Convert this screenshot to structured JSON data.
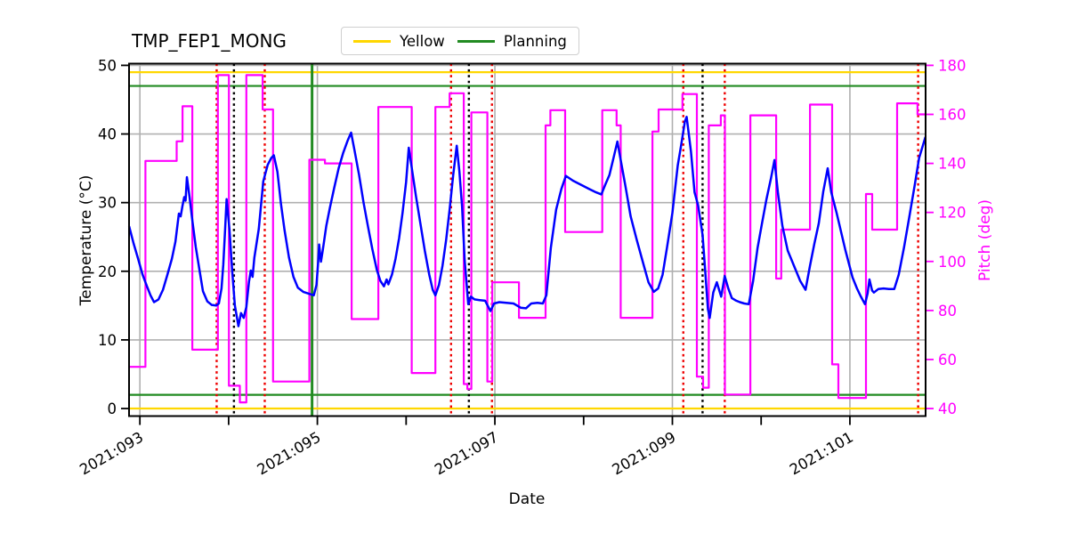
{
  "title": "TMP_FEP1_MONG",
  "legend": {
    "items": [
      {
        "label": "Yellow",
        "color": "#ffd700"
      },
      {
        "label": "Planning",
        "color": "#228b22"
      }
    ]
  },
  "chart_data": {
    "type": "line",
    "title": "TMP_FEP1_MONG",
    "xlabel": "Date",
    "ylabel_left": "Temperature (°C)",
    "ylabel_right": "Pitch (deg)",
    "x_axis": {
      "min": 92.878,
      "max": 101.853,
      "tick_days": [
        93,
        94,
        95,
        96,
        97,
        98,
        99,
        100,
        101
      ],
      "labeled_ticks": [
        {
          "day": 93,
          "label": "2021:093"
        },
        {
          "day": 95,
          "label": "2021:095"
        },
        {
          "day": 97,
          "label": "2021:097"
        },
        {
          "day": 99,
          "label": "2021:099"
        },
        {
          "day": 101,
          "label": "2021:101"
        }
      ],
      "gridline_days": [
        93,
        95,
        97,
        99,
        101
      ],
      "label_rotation_deg": -30
    },
    "y_left": {
      "min": -1.1,
      "max": 50.25,
      "ticks": [
        0,
        10,
        20,
        30,
        40,
        50
      ],
      "color": "#000000"
    },
    "y_right": {
      "min": 36.9,
      "max": 180.7,
      "ticks": [
        40,
        60,
        80,
        100,
        120,
        140,
        160,
        180
      ],
      "color": "#ff00ff",
      "scale_note": "pitch = temperature * 2.8 + 40"
    },
    "grid": {
      "color": "#b0b0b0",
      "width": 1.6
    },
    "limit_lines": [
      {
        "name": "yellow-upper",
        "color": "#ffd700",
        "y": 49
      },
      {
        "name": "yellow-lower",
        "color": "#ffd700",
        "y": 0
      },
      {
        "name": "planning-upper",
        "color": "#228b22",
        "y": 47
      },
      {
        "name": "planning-lower",
        "color": "#228b22",
        "y": 2
      }
    ],
    "event_lines": {
      "red_dotted_days": [
        93.865,
        94.407,
        96.506,
        96.967,
        99.123,
        99.59,
        101.769
      ],
      "black_dotted_days": [
        94.06,
        96.707,
        99.34
      ],
      "green_solid_days": [
        94.94
      ],
      "red_color": "#ee0000",
      "black_color": "#000000",
      "green_color": "#228b22"
    },
    "series": [
      {
        "name": "Temperature",
        "axis": "left",
        "color": "#0000ff",
        "width": 2.5,
        "style": "line",
        "points": [
          [
            92.88,
            26.5
          ],
          [
            92.93,
            24.0
          ],
          [
            92.98,
            21.8
          ],
          [
            93.03,
            19.5
          ],
          [
            93.08,
            17.8
          ],
          [
            93.12,
            16.5
          ],
          [
            93.16,
            15.5
          ],
          [
            93.21,
            15.9
          ],
          [
            93.26,
            17.3
          ],
          [
            93.31,
            19.5
          ],
          [
            93.36,
            21.8
          ],
          [
            93.4,
            24.3
          ],
          [
            93.42,
            26.3
          ],
          [
            93.44,
            28.4
          ],
          [
            93.46,
            28.0
          ],
          [
            93.48,
            29.5
          ],
          [
            93.5,
            30.8
          ],
          [
            93.515,
            30.3
          ],
          [
            93.53,
            33.7
          ],
          [
            93.56,
            30.8
          ],
          [
            93.59,
            27.5
          ],
          [
            93.63,
            23.5
          ],
          [
            93.67,
            20.3
          ],
          [
            93.71,
            17.1
          ],
          [
            93.76,
            15.6
          ],
          [
            93.81,
            15.1
          ],
          [
            93.86,
            15.0
          ],
          [
            93.89,
            15.3
          ],
          [
            93.92,
            17.5
          ],
          [
            93.94,
            21.0
          ],
          [
            93.96,
            26.0
          ],
          [
            93.977,
            30.5
          ],
          [
            94.01,
            26.0
          ],
          [
            94.04,
            20.0
          ],
          [
            94.07,
            15.0
          ],
          [
            94.11,
            12.0
          ],
          [
            94.14,
            13.9
          ],
          [
            94.17,
            13.2
          ],
          [
            94.2,
            14.8
          ],
          [
            94.23,
            18.5
          ],
          [
            94.25,
            20.1
          ],
          [
            94.27,
            19.2
          ],
          [
            94.29,
            22.0
          ],
          [
            94.34,
            26.2
          ],
          [
            94.39,
            33.1
          ],
          [
            94.44,
            35.5
          ],
          [
            94.48,
            36.5
          ],
          [
            94.51,
            36.9
          ],
          [
            94.55,
            34.5
          ],
          [
            94.59,
            29.8
          ],
          [
            94.63,
            26.0
          ],
          [
            94.68,
            22.0
          ],
          [
            94.73,
            19.2
          ],
          [
            94.78,
            17.6
          ],
          [
            94.84,
            17.0
          ],
          [
            94.91,
            16.7
          ],
          [
            94.96,
            16.5
          ],
          [
            94.99,
            18.0
          ],
          [
            95.01,
            21.5
          ],
          [
            95.02,
            23.9
          ],
          [
            95.04,
            21.4
          ],
          [
            95.06,
            23.0
          ],
          [
            95.1,
            26.6
          ],
          [
            95.14,
            29.2
          ],
          [
            95.19,
            32.2
          ],
          [
            95.24,
            35.0
          ],
          [
            95.29,
            37.2
          ],
          [
            95.34,
            39.0
          ],
          [
            95.38,
            40.2
          ],
          [
            95.42,
            37.5
          ],
          [
            95.47,
            34.0
          ],
          [
            95.52,
            30.0
          ],
          [
            95.57,
            26.5
          ],
          [
            95.62,
            23.2
          ],
          [
            95.67,
            20.2
          ],
          [
            95.71,
            18.6
          ],
          [
            95.75,
            17.8
          ],
          [
            95.78,
            18.8
          ],
          [
            95.8,
            18.1
          ],
          [
            95.84,
            19.5
          ],
          [
            95.88,
            21.8
          ],
          [
            95.92,
            24.8
          ],
          [
            95.96,
            28.5
          ],
          [
            96.0,
            33.0
          ],
          [
            96.03,
            38.0
          ],
          [
            96.07,
            34.5
          ],
          [
            96.11,
            31.0
          ],
          [
            96.16,
            27.0
          ],
          [
            96.21,
            23.0
          ],
          [
            96.26,
            19.5
          ],
          [
            96.3,
            17.3
          ],
          [
            96.33,
            16.5
          ],
          [
            96.37,
            18.0
          ],
          [
            96.41,
            20.8
          ],
          [
            96.45,
            24.5
          ],
          [
            96.49,
            29.0
          ],
          [
            96.53,
            34.0
          ],
          [
            96.57,
            38.3
          ],
          [
            96.6,
            34.5
          ],
          [
            96.63,
            29.4
          ],
          [
            96.66,
            21.6
          ],
          [
            96.7,
            15.2
          ],
          [
            96.73,
            16.3
          ],
          [
            96.77,
            15.9
          ],
          [
            96.83,
            15.8
          ],
          [
            96.89,
            15.7
          ],
          [
            96.95,
            14.2
          ],
          [
            96.99,
            15.3
          ],
          [
            97.05,
            15.5
          ],
          [
            97.13,
            15.4
          ],
          [
            97.21,
            15.3
          ],
          [
            97.29,
            14.7
          ],
          [
            97.35,
            14.6
          ],
          [
            97.41,
            15.3
          ],
          [
            97.48,
            15.4
          ],
          [
            97.54,
            15.3
          ],
          [
            97.58,
            16.5
          ],
          [
            97.63,
            23.4
          ],
          [
            97.69,
            29.0
          ],
          [
            97.75,
            32.0
          ],
          [
            97.8,
            33.9
          ],
          [
            97.88,
            33.2
          ],
          [
            97.97,
            32.6
          ],
          [
            98.06,
            32.0
          ],
          [
            98.14,
            31.5
          ],
          [
            98.2,
            31.2
          ],
          [
            98.24,
            32.5
          ],
          [
            98.29,
            34.0
          ],
          [
            98.34,
            36.7
          ],
          [
            98.38,
            38.9
          ],
          [
            98.42,
            36.0
          ],
          [
            98.47,
            32.5
          ],
          [
            98.53,
            28.0
          ],
          [
            98.6,
            24.5
          ],
          [
            98.67,
            21.2
          ],
          [
            98.73,
            18.4
          ],
          [
            98.79,
            17.0
          ],
          [
            98.84,
            17.5
          ],
          [
            98.89,
            19.5
          ],
          [
            98.94,
            23.5
          ],
          [
            99.0,
            28.5
          ],
          [
            99.06,
            35.4
          ],
          [
            99.1,
            38.5
          ],
          [
            99.14,
            41.8
          ],
          [
            99.16,
            42.5
          ],
          [
            99.19,
            39.5
          ],
          [
            99.21,
            37.4
          ],
          [
            99.25,
            31.5
          ],
          [
            99.29,
            29.6
          ],
          [
            99.34,
            25.3
          ],
          [
            99.37,
            20.0
          ],
          [
            99.4,
            14.5
          ],
          [
            99.42,
            13.2
          ],
          [
            99.46,
            16.9
          ],
          [
            99.5,
            18.4
          ],
          [
            99.55,
            16.3
          ],
          [
            99.59,
            19.3
          ],
          [
            99.63,
            17.5
          ],
          [
            99.67,
            16.1
          ],
          [
            99.72,
            15.7
          ],
          [
            99.76,
            15.5
          ],
          [
            99.81,
            15.3
          ],
          [
            99.86,
            15.2
          ],
          [
            99.91,
            18.6
          ],
          [
            99.96,
            23.4
          ],
          [
            100.01,
            27.0
          ],
          [
            100.06,
            30.5
          ],
          [
            100.11,
            33.5
          ],
          [
            100.15,
            36.2
          ],
          [
            100.19,
            31.3
          ],
          [
            100.24,
            26.6
          ],
          [
            100.3,
            23.0
          ],
          [
            100.37,
            20.8
          ],
          [
            100.44,
            18.6
          ],
          [
            100.5,
            17.3
          ],
          [
            100.55,
            20.8
          ],
          [
            100.6,
            24.0
          ],
          [
            100.65,
            27.0
          ],
          [
            100.7,
            31.6
          ],
          [
            100.75,
            35.0
          ],
          [
            100.79,
            31.5
          ],
          [
            100.85,
            28.5
          ],
          [
            100.95,
            23.0
          ],
          [
            101.03,
            19.1
          ],
          [
            101.08,
            17.5
          ],
          [
            101.12,
            16.4
          ],
          [
            101.17,
            15.2
          ],
          [
            101.2,
            16.8
          ],
          [
            101.22,
            18.8
          ],
          [
            101.25,
            17.2
          ],
          [
            101.27,
            16.9
          ],
          [
            101.32,
            17.4
          ],
          [
            101.38,
            17.5
          ],
          [
            101.44,
            17.4
          ],
          [
            101.5,
            17.4
          ],
          [
            101.55,
            19.5
          ],
          [
            101.61,
            23.5
          ],
          [
            101.67,
            28.0
          ],
          [
            101.73,
            32.5
          ],
          [
            101.78,
            36.5
          ],
          [
            101.85,
            39.5
          ]
        ]
      },
      {
        "name": "Pitch",
        "axis": "right",
        "color": "#ff00ff",
        "width": 2.2,
        "style": "step",
        "segments": [
          [
            92.878,
            93.063,
            57
          ],
          [
            93.063,
            93.414,
            141
          ],
          [
            93.414,
            93.481,
            149
          ],
          [
            93.481,
            93.591,
            163.3
          ],
          [
            93.591,
            93.879,
            64
          ],
          [
            93.879,
            94.003,
            176
          ],
          [
            94.003,
            94.126,
            49.3
          ],
          [
            94.126,
            94.2,
            42.5
          ],
          [
            94.2,
            94.383,
            176
          ],
          [
            94.383,
            94.501,
            162
          ],
          [
            94.501,
            94.91,
            51
          ],
          [
            94.91,
            95.085,
            141.5
          ],
          [
            95.085,
            95.386,
            140
          ],
          [
            95.386,
            95.687,
            76.5
          ],
          [
            95.687,
            96.063,
            163
          ],
          [
            96.063,
            96.33,
            54.5
          ],
          [
            96.33,
            96.49,
            163
          ],
          [
            96.49,
            96.65,
            168.6
          ],
          [
            96.65,
            96.69,
            50
          ],
          [
            96.69,
            96.735,
            48
          ],
          [
            96.735,
            96.915,
            160.8
          ],
          [
            96.915,
            96.97,
            51
          ],
          [
            96.97,
            97.271,
            91.5
          ],
          [
            97.271,
            97.571,
            77
          ],
          [
            97.571,
            97.625,
            155.5
          ],
          [
            97.625,
            97.792,
            161.7
          ],
          [
            97.792,
            98.21,
            112
          ],
          [
            98.21,
            98.371,
            161.7
          ],
          [
            98.371,
            98.417,
            155.5
          ],
          [
            98.417,
            98.775,
            77
          ],
          [
            98.775,
            98.845,
            153
          ],
          [
            98.845,
            99.113,
            162
          ],
          [
            99.113,
            99.276,
            168.3
          ],
          [
            99.276,
            99.346,
            53
          ],
          [
            99.346,
            99.41,
            48.5
          ],
          [
            99.41,
            99.546,
            155.5
          ],
          [
            99.546,
            99.592,
            159.6
          ],
          [
            99.592,
            99.878,
            45.7
          ],
          [
            99.878,
            100.169,
            159.6
          ],
          [
            100.169,
            100.226,
            93
          ],
          [
            100.226,
            100.55,
            113
          ],
          [
            100.55,
            100.8,
            164
          ],
          [
            100.8,
            100.87,
            58
          ],
          [
            100.87,
            101.181,
            44.3
          ],
          [
            101.181,
            101.251,
            127.5
          ],
          [
            101.251,
            101.532,
            113
          ],
          [
            101.532,
            101.762,
            164.5
          ],
          [
            101.762,
            101.853,
            160
          ]
        ]
      }
    ]
  }
}
